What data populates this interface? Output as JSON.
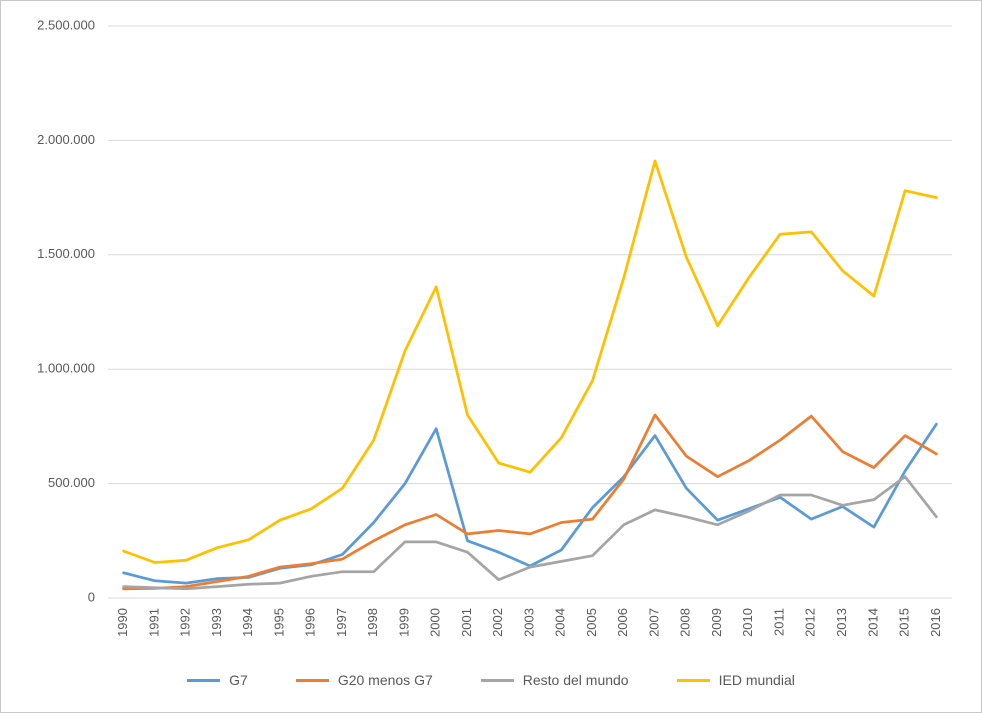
{
  "chart": {
    "background": "#FFFFFF",
    "border_color": "#C9C9C9",
    "gridline_color": "#D9D9D9",
    "axis_text_color": "#595959"
  },
  "chart_data": {
    "type": "line",
    "title": "",
    "xlabel": "",
    "ylabel": "",
    "grid": true,
    "legend_position": "bottom",
    "ylim": [
      0,
      2500000
    ],
    "ytick_interval": 500000,
    "ytick_labels": [
      "0",
      "500.000",
      "1.000.000",
      "1.500.000",
      "2.000.000",
      "2.500.000"
    ],
    "categories": [
      "1990",
      "1991",
      "1992",
      "1993",
      "1994",
      "1995",
      "1996",
      "1997",
      "1998",
      "1999",
      "2000",
      "2001",
      "2002",
      "2003",
      "2004",
      "2005",
      "2006",
      "2007",
      "2008",
      "2009",
      "2010",
      "2011",
      "2012",
      "2013",
      "2014",
      "2015",
      "2016"
    ],
    "series": [
      {
        "name": "G7",
        "color": "#5B9BD5",
        "values": [
          110000,
          75000,
          65000,
          85000,
          90000,
          130000,
          145000,
          190000,
          330000,
          500000,
          740000,
          250000,
          200000,
          140000,
          210000,
          395000,
          530000,
          710000,
          480000,
          340000,
          390000,
          440000,
          345000,
          400000,
          310000,
          555000,
          760000
        ]
      },
      {
        "name": "G20 menos G7",
        "color": "#ED7D31",
        "values": [
          40000,
          42000,
          50000,
          72000,
          95000,
          135000,
          150000,
          170000,
          250000,
          320000,
          365000,
          280000,
          295000,
          280000,
          330000,
          345000,
          520000,
          800000,
          620000,
          530000,
          600000,
          690000,
          795000,
          640000,
          570000,
          710000,
          630000
        ]
      },
      {
        "name": "Resto del mundo",
        "color": "#A5A5A5",
        "values": [
          50000,
          45000,
          40000,
          50000,
          60000,
          65000,
          95000,
          115000,
          115000,
          245000,
          245000,
          200000,
          80000,
          135000,
          160000,
          185000,
          320000,
          385000,
          355000,
          320000,
          380000,
          450000,
          450000,
          405000,
          430000,
          530000,
          355000
        ]
      },
      {
        "name": "IED mundial",
        "color": "#FFC000",
        "values": [
          205000,
          155000,
          165000,
          220000,
          255000,
          340000,
          390000,
          480000,
          690000,
          1080000,
          1360000,
          800000,
          590000,
          550000,
          700000,
          950000,
          1400000,
          1910000,
          1490000,
          1190000,
          1400000,
          1590000,
          1600000,
          1430000,
          1320000,
          1780000,
          1750000
        ]
      }
    ]
  }
}
